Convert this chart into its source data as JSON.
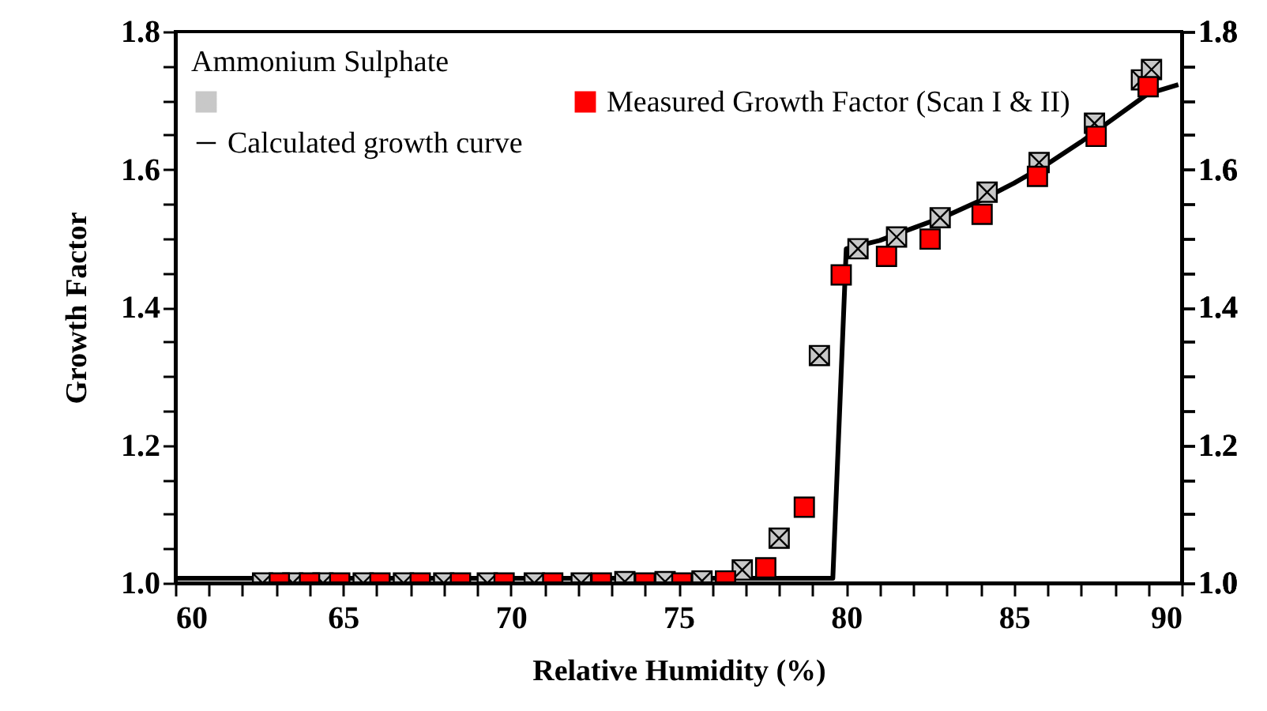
{
  "chart_data": {
    "type": "scatter",
    "xlabel": "Relative Humidity (%)",
    "ylabel": "Growth Factor",
    "legend_title": "Ammonium Sulphate",
    "legend": "top left",
    "grid": false,
    "xlim": [
      60,
      90
    ],
    "ylim": [
      1.0,
      1.8
    ],
    "y2lim": [
      1.0,
      1.8
    ],
    "xticks": [
      60,
      {
        "value": 61,
        "label": null
      },
      {
        "value": 62,
        "label": null
      },
      {
        "value": 63,
        "label": null
      },
      {
        "value": 64,
        "label": null
      },
      65,
      {
        "value": 66,
        "label": null
      },
      {
        "value": 67,
        "label": null
      },
      {
        "value": 68,
        "label": null
      },
      {
        "value": 69,
        "label": null
      },
      70,
      {
        "value": 71,
        "label": null
      },
      {
        "value": 72,
        "label": null
      },
      {
        "value": 73,
        "label": null
      },
      {
        "value": 74,
        "label": null
      },
      75,
      {
        "value": 76,
        "label": null
      },
      {
        "value": 77,
        "label": null
      },
      {
        "value": 78,
        "label": null
      },
      {
        "value": 79,
        "label": null
      },
      80,
      {
        "value": 81,
        "label": null
      },
      {
        "value": 82,
        "label": null
      },
      {
        "value": 83,
        "label": null
      },
      {
        "value": 84,
        "label": null
      },
      85,
      {
        "value": 86,
        "label": null
      },
      {
        "value": 87,
        "label": null
      },
      {
        "value": 88,
        "label": null
      },
      {
        "value": 89,
        "label": null
      },
      90
    ],
    "yticks": [
      {
        "value": 1.0,
        "label": "1.0"
      },
      {
        "value": 1.05,
        "label": null
      },
      {
        "value": 1.1,
        "label": null
      },
      {
        "value": 1.15,
        "label": null
      },
      {
        "value": 1.2,
        "label": "1.2"
      },
      {
        "value": 1.25,
        "label": null
      },
      {
        "value": 1.3,
        "label": null
      },
      {
        "value": 1.35,
        "label": null
      },
      {
        "value": 1.4,
        "label": "1.4"
      },
      {
        "value": 1.45,
        "label": null
      },
      {
        "value": 1.5,
        "label": null
      },
      {
        "value": 1.55,
        "label": null
      },
      {
        "value": 1.6,
        "label": "1.6"
      },
      {
        "value": 1.65,
        "label": null
      },
      {
        "value": 1.7,
        "label": null
      },
      {
        "value": 1.75,
        "label": null
      },
      {
        "value": 1.8,
        "label": "1.8"
      }
    ],
    "y2ticks": [
      {
        "value": 1.0,
        "label": "1.0"
      },
      {
        "value": 1.05,
        "label": null
      },
      {
        "value": 1.1,
        "label": null
      },
      {
        "value": 1.15,
        "label": null
      },
      {
        "value": 1.2,
        "label": "1.2"
      },
      {
        "value": 1.25,
        "label": null
      },
      {
        "value": 1.3,
        "label": null
      },
      {
        "value": 1.35,
        "label": null
      },
      {
        "value": 1.4,
        "label": "1.4"
      },
      {
        "value": 1.45,
        "label": null
      },
      {
        "value": 1.5,
        "label": null
      },
      {
        "value": 1.55,
        "label": null
      },
      {
        "value": 1.6,
        "label": "1.6"
      },
      {
        "value": 1.65,
        "label": null
      },
      {
        "value": 1.7,
        "label": null
      },
      {
        "value": 1.75,
        "label": null
      },
      {
        "value": 1.8,
        "label": "1.8"
      }
    ],
    "series": [
      {
        "marker": "cross",
        "color": "#c8c8c8",
        "x": [
          62.6,
          63.5,
          64.4,
          65.6,
          66.8,
          68.0,
          69.3,
          70.7,
          72.1,
          73.4,
          74.6,
          75.7,
          76.9,
          78.0,
          79.2,
          80.35,
          81.5,
          82.8,
          84.2,
          85.75,
          87.4,
          88.8,
          89.1
        ],
        "values": [
          1.0,
          1.0,
          1.0,
          1.0,
          1.0,
          1.0,
          1.0,
          1.0,
          1.0,
          1.002,
          1.002,
          1.003,
          1.019,
          1.065,
          1.33,
          1.485,
          1.502,
          1.53,
          1.567,
          1.61,
          1.667,
          1.73,
          1.745
        ]
      },
      {
        "name": "Measured Growth Factor (Scan I & II)",
        "marker": "square",
        "color": "#ff0000",
        "x": [
          63.1,
          64.0,
          64.9,
          66.1,
          67.3,
          68.5,
          69.8,
          71.25,
          72.7,
          74.0,
          75.1,
          76.4,
          77.6,
          78.75,
          79.85,
          81.2,
          82.5,
          84.05,
          85.7,
          87.45,
          89.0
        ],
        "values": [
          1.0,
          1.0,
          1.0,
          1.0,
          1.0,
          1.0,
          1.0,
          1.0,
          1.0,
          1.0,
          1.0,
          1.003,
          1.022,
          1.11,
          1.447,
          1.474,
          1.499,
          1.535,
          1.59,
          1.648,
          1.72
        ]
      },
      {
        "name": "Calculated growth curve",
        "type": "line",
        "line_style": "solid",
        "color": "#000000",
        "x": [
          60,
          79.6,
          80.0,
          81,
          82,
          83,
          84,
          85,
          86,
          87,
          88,
          89,
          89.9
        ],
        "values": [
          1.007,
          1.007,
          1.485,
          1.497,
          1.515,
          1.533,
          1.555,
          1.58,
          1.608,
          1.64,
          1.675,
          1.71,
          1.723
        ]
      }
    ]
  }
}
